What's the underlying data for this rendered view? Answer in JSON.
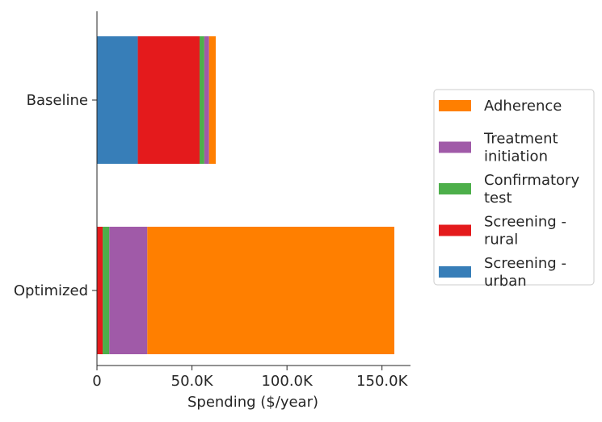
{
  "chart_data": {
    "type": "bar",
    "orientation": "horizontal",
    "stacked": true,
    "categories": [
      "Baseline",
      "Optimized"
    ],
    "series": [
      {
        "name": "Screening - urban",
        "color": "#377eb8",
        "values": [
          21500,
          0
        ]
      },
      {
        "name": "Screening - rural",
        "color": "#e41a1c",
        "values": [
          32500,
          3000
        ]
      },
      {
        "name": "Confirmatory test",
        "color": "#4daf4a",
        "values": [
          2500,
          3500
        ]
      },
      {
        "name": "Treatment initiation",
        "color": "#a05aa8",
        "values": [
          2500,
          20000
        ]
      },
      {
        "name": "Adherence",
        "color": "#ff7f00",
        "values": [
          3500,
          130000
        ]
      }
    ],
    "xlabel": "Spending ($/year)",
    "ylabel": "",
    "title": "",
    "xlim": [
      0,
      165000
    ],
    "xticks": [
      0,
      50000,
      100000,
      150000
    ],
    "xtick_labels": [
      "0",
      "50.0K",
      "100.0K",
      "150.0K"
    ],
    "legend": {
      "placement": "center-right",
      "entries": [
        {
          "name": "Adherence",
          "lines": [
            "Adherence"
          ],
          "color": "#ff7f00"
        },
        {
          "name": "Treatment initiation",
          "lines": [
            "Treatment",
            "initiation"
          ],
          "color": "#a05aa8"
        },
        {
          "name": "Confirmatory test",
          "lines": [
            "Confirmatory",
            "test"
          ],
          "color": "#4daf4a"
        },
        {
          "name": "Screening - rural",
          "lines": [
            "Screening -",
            "rural"
          ],
          "color": "#e41a1c"
        },
        {
          "name": "Screening - urban",
          "lines": [
            "Screening -",
            "urban"
          ],
          "color": "#377eb8"
        }
      ]
    },
    "grid": false
  }
}
